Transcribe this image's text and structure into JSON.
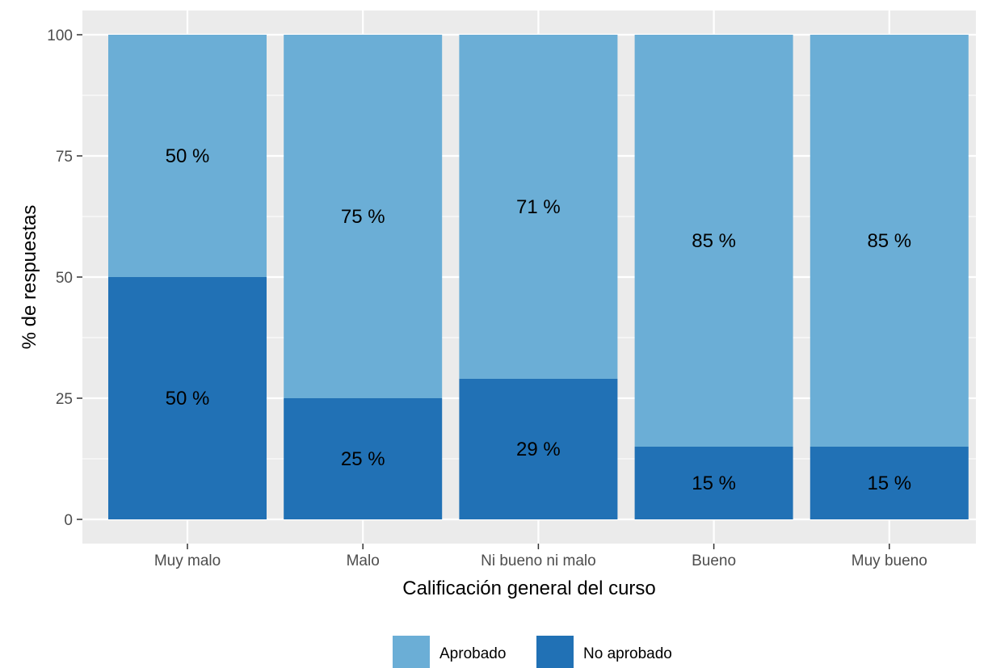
{
  "chart_data": {
    "type": "bar",
    "stacked": true,
    "title": "",
    "xlabel": "Calificación general del curso",
    "ylabel": "% de respuestas",
    "ylim": [
      0,
      100
    ],
    "yticks": [
      "0",
      "25",
      "50",
      "75",
      "100"
    ],
    "grid": true,
    "legend_position": "bottom",
    "categories": [
      "Muy malo",
      "Malo",
      "Ni bueno ni malo",
      "Bueno",
      "Muy bueno"
    ],
    "series": [
      {
        "name": "Aprobado",
        "color": "#6baed6",
        "values": [
          50,
          75,
          71,
          85,
          85
        ],
        "labels": [
          "50 %",
          "75 %",
          "71 %",
          "85 %",
          "85 %"
        ]
      },
      {
        "name": "No aprobado",
        "color": "#2171b5",
        "values": [
          50,
          25,
          29,
          15,
          15
        ],
        "labels": [
          "50 %",
          "25 %",
          "29 %",
          "15 %",
          "15 %"
        ]
      }
    ]
  }
}
